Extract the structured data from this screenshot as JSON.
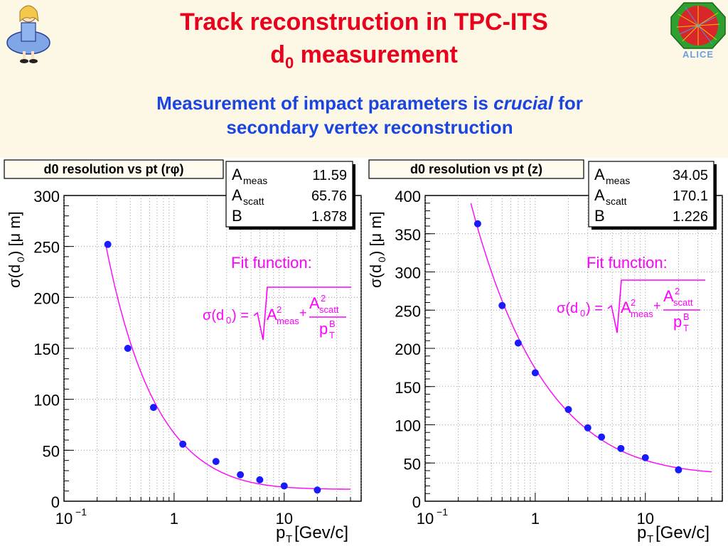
{
  "slide": {
    "title_line1": "Track reconstruction in TPC-ITS",
    "title_line2_main": "d",
    "title_line2_sub": "0",
    "title_line2_rest": " measurement",
    "subtitle_part1": "Measurement of impact parameters is ",
    "subtitle_italic": "crucial",
    "subtitle_part2": " for",
    "subtitle_line2": "secondary vertex reconstruction",
    "logo_right_text": "ALICE",
    "fit_label": "Fit function:"
  },
  "colors": {
    "title": "#e8001c",
    "subtitle": "#1a45e0",
    "points": "#1a1aff",
    "fit_curve": "#ff00ff",
    "banner": "#fdf8e6"
  },
  "chart_data": [
    {
      "type": "scatter",
      "title": "d0 resolution vs pt (rφ)",
      "xlabel": "pT [Gev/c]",
      "ylabel": "σ(d0) [μ m]",
      "x_scale": "log",
      "xlim": [
        0.1,
        50
      ],
      "ylim": [
        0,
        300
      ],
      "yticks": [
        0,
        50,
        100,
        150,
        200,
        250,
        300
      ],
      "xtick_labels": [
        "10⁻¹",
        "1",
        "10"
      ],
      "grid": true,
      "x": [
        0.25,
        0.38,
        0.65,
        1.2,
        2.4,
        4.0,
        6.0,
        10.0,
        20.0
      ],
      "y": [
        252,
        150,
        92,
        56,
        39,
        26,
        21,
        15,
        11
      ],
      "fit": {
        "A_meas": 11.59,
        "A_scatt": 65.76,
        "B": 1.878
      },
      "stats": [
        {
          "name": "A",
          "sub": "meas",
          "value": "11.59"
        },
        {
          "name": "A",
          "sub": "scatt",
          "value": "65.76"
        },
        {
          "name": "B",
          "sub": "",
          "value": "1.878"
        }
      ]
    },
    {
      "type": "scatter",
      "title": "d0 resolution vs pt (z)",
      "xlabel": "pT [Gev/c]",
      "ylabel": "σ(d0) [μ m]",
      "x_scale": "log",
      "xlim": [
        0.1,
        50
      ],
      "ylim": [
        0,
        400
      ],
      "yticks": [
        0,
        50,
        100,
        150,
        200,
        250,
        300,
        350,
        400
      ],
      "xtick_labels": [
        "10⁻¹",
        "1",
        "10"
      ],
      "grid": true,
      "x": [
        0.3,
        0.5,
        0.7,
        1.0,
        2.0,
        3.0,
        4.0,
        6.0,
        10.0,
        20.0
      ],
      "y": [
        363,
        256,
        207,
        168,
        120,
        96,
        84,
        69,
        57,
        41
      ],
      "fit": {
        "A_meas": 34.05,
        "A_scatt": 170.1,
        "B": 1.226
      },
      "stats": [
        {
          "name": "A",
          "sub": "meas",
          "value": "34.05"
        },
        {
          "name": "A",
          "sub": "scatt",
          "value": "170.1"
        },
        {
          "name": "B",
          "sub": "",
          "value": "1.226"
        }
      ]
    }
  ]
}
